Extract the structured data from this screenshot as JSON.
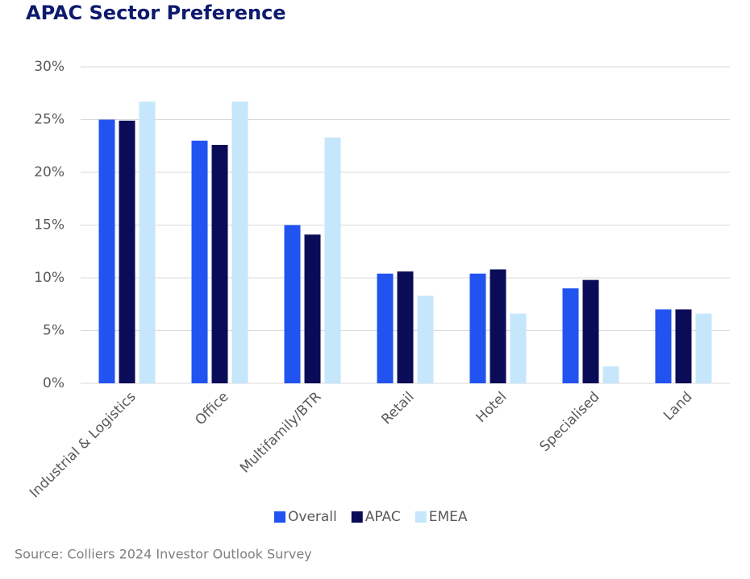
{
  "chart_data": {
    "type": "bar",
    "title": "APAC Sector Preference",
    "source": "Source: Colliers 2024 Investor Outlook Survey",
    "categories": [
      "Industrial & Logistics",
      "Office",
      "Multifamily/BTR",
      "Retail",
      "Hotel",
      "Specialised",
      "Land"
    ],
    "series": [
      {
        "name": "Overall",
        "color": "#2053f0",
        "values": [
          25.0,
          23.0,
          15.0,
          10.4,
          10.4,
          9.0,
          7.0
        ]
      },
      {
        "name": "APAC",
        "color": "#0b0c58",
        "values": [
          24.9,
          22.6,
          14.1,
          10.6,
          10.8,
          9.8,
          7.0
        ]
      },
      {
        "name": "EMEA",
        "color": "#c6e6fb",
        "values": [
          26.7,
          26.7,
          23.3,
          8.3,
          6.6,
          1.6,
          6.6
        ]
      }
    ],
    "ylim": [
      0,
      30
    ],
    "yticks": [
      {
        "value": 0,
        "label": "0%"
      },
      {
        "value": 5,
        "label": "5%"
      },
      {
        "value": 10,
        "label": "10%"
      },
      {
        "value": 15,
        "label": "15%"
      },
      {
        "value": 20,
        "label": "20%"
      },
      {
        "value": 25,
        "label": "25%"
      },
      {
        "value": 30,
        "label": "30%"
      }
    ],
    "grid": true,
    "legend": "bottom"
  }
}
